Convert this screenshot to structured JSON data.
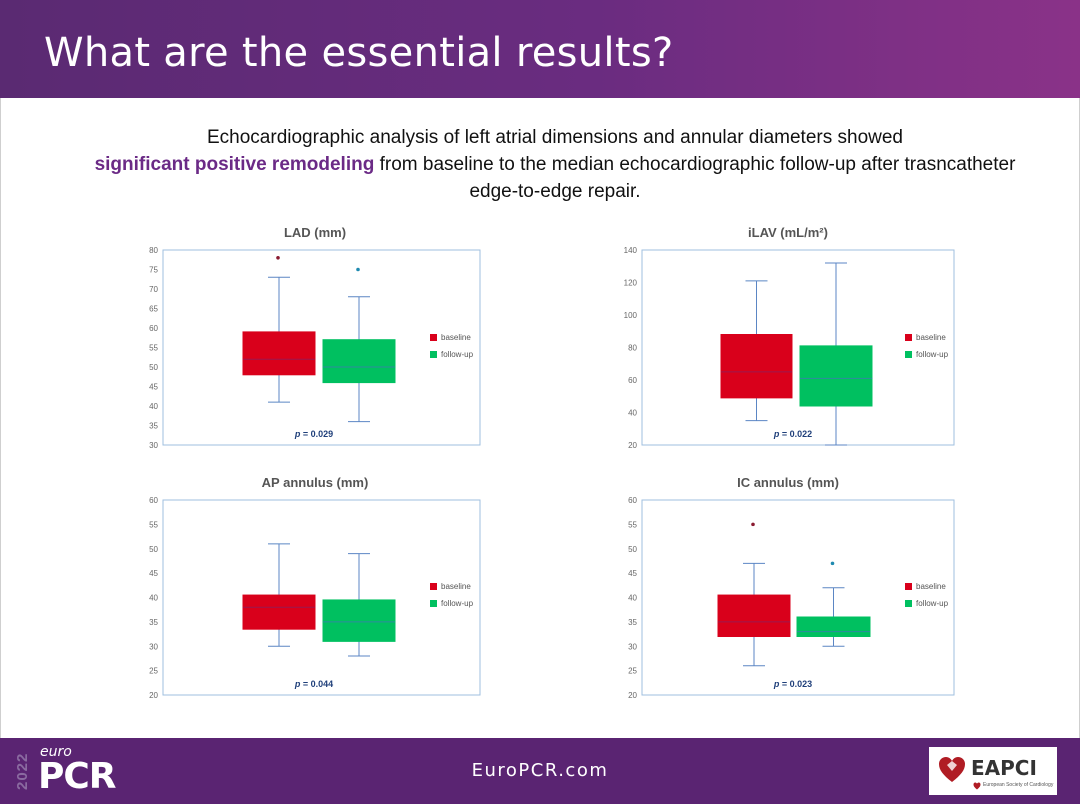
{
  "slide": {
    "title": "What are the essential results?",
    "intro": {
      "line1": "Echocardiographic analysis of left atrial dimensions and annular diameters showed",
      "highlight": "significant positive remodeling",
      "rest": " from baseline to the median echocardiographic follow-up after trasncatheter edge-to-edge repair."
    }
  },
  "footer": {
    "year": "2022",
    "logo_small": "euro",
    "logo_big": "PCR",
    "url": "EuroPCR.com",
    "partner_logo": "EAPCI",
    "partner_sub": "European Society of Cardiology"
  },
  "colors": {
    "baseline": "#d9001b",
    "followup": "#00c060",
    "whisker": "#5b86c4",
    "median_baseline": "#9a1850",
    "median_followup": "#2f8aa0",
    "axis": "#9fbfdf",
    "pvalue": "#1f3f7a"
  },
  "chart_data": [
    {
      "type": "box",
      "title": "LAD (mm)",
      "ylim": [
        30,
        80
      ],
      "yticks": [
        30,
        35,
        40,
        45,
        50,
        55,
        60,
        65,
        70,
        75,
        80
      ],
      "legend": [
        "baseline",
        "follow-up"
      ],
      "legend_position": "right",
      "p_label": "p",
      "p_value": "= 0.029",
      "series": [
        {
          "name": "baseline",
          "min": 41,
          "q1": 48,
          "median": 52,
          "q3": 59,
          "max": 73,
          "outliers": [
            78
          ]
        },
        {
          "name": "follow-up",
          "min": 36,
          "q1": 46,
          "median": 50,
          "q3": 57,
          "max": 68,
          "outliers": [
            75
          ]
        }
      ]
    },
    {
      "type": "box",
      "title": "iLAV (mL/m²)",
      "ylim": [
        20,
        140
      ],
      "yticks": [
        20,
        40,
        60,
        80,
        100,
        120,
        140
      ],
      "legend": [
        "baseline",
        "follow-up"
      ],
      "legend_position": "right",
      "p_label": "p",
      "p_value": "= 0.022",
      "series": [
        {
          "name": "baseline",
          "min": 35,
          "q1": 49,
          "median": 65,
          "q3": 88,
          "max": 121,
          "outliers": []
        },
        {
          "name": "follow-up",
          "min": 20,
          "q1": 44,
          "median": 61,
          "q3": 81,
          "max": 132,
          "outliers": []
        }
      ]
    },
    {
      "type": "box",
      "title": "AP annulus (mm)",
      "ylim": [
        20,
        60
      ],
      "yticks": [
        20,
        25,
        30,
        35,
        40,
        45,
        50,
        55,
        60
      ],
      "legend": [
        "baseline",
        "follow-up"
      ],
      "legend_position": "right",
      "p_label": "p",
      "p_value": "= 0.044",
      "series": [
        {
          "name": "baseline",
          "min": 30,
          "q1": 33.5,
          "median": 38,
          "q3": 40.5,
          "max": 51,
          "outliers": []
        },
        {
          "name": "follow-up",
          "min": 28,
          "q1": 31,
          "median": 35,
          "q3": 39.5,
          "max": 49,
          "outliers": []
        }
      ]
    },
    {
      "type": "box",
      "title": "IC annulus (mm)",
      "ylim": [
        20,
        60
      ],
      "yticks": [
        20,
        25,
        30,
        35,
        40,
        45,
        50,
        55,
        60
      ],
      "legend": [
        "baseline",
        "follow-up"
      ],
      "legend_position": "right",
      "p_label": "p",
      "p_value": "= 0.023",
      "series": [
        {
          "name": "baseline",
          "min": 26,
          "q1": 32,
          "median": 35,
          "q3": 40.5,
          "max": 47,
          "outliers": [
            55
          ]
        },
        {
          "name": "follow-up",
          "min": 30,
          "q1": 32,
          "median": 33,
          "q3": 36,
          "max": 42,
          "outliers": [
            47
          ]
        }
      ]
    }
  ]
}
